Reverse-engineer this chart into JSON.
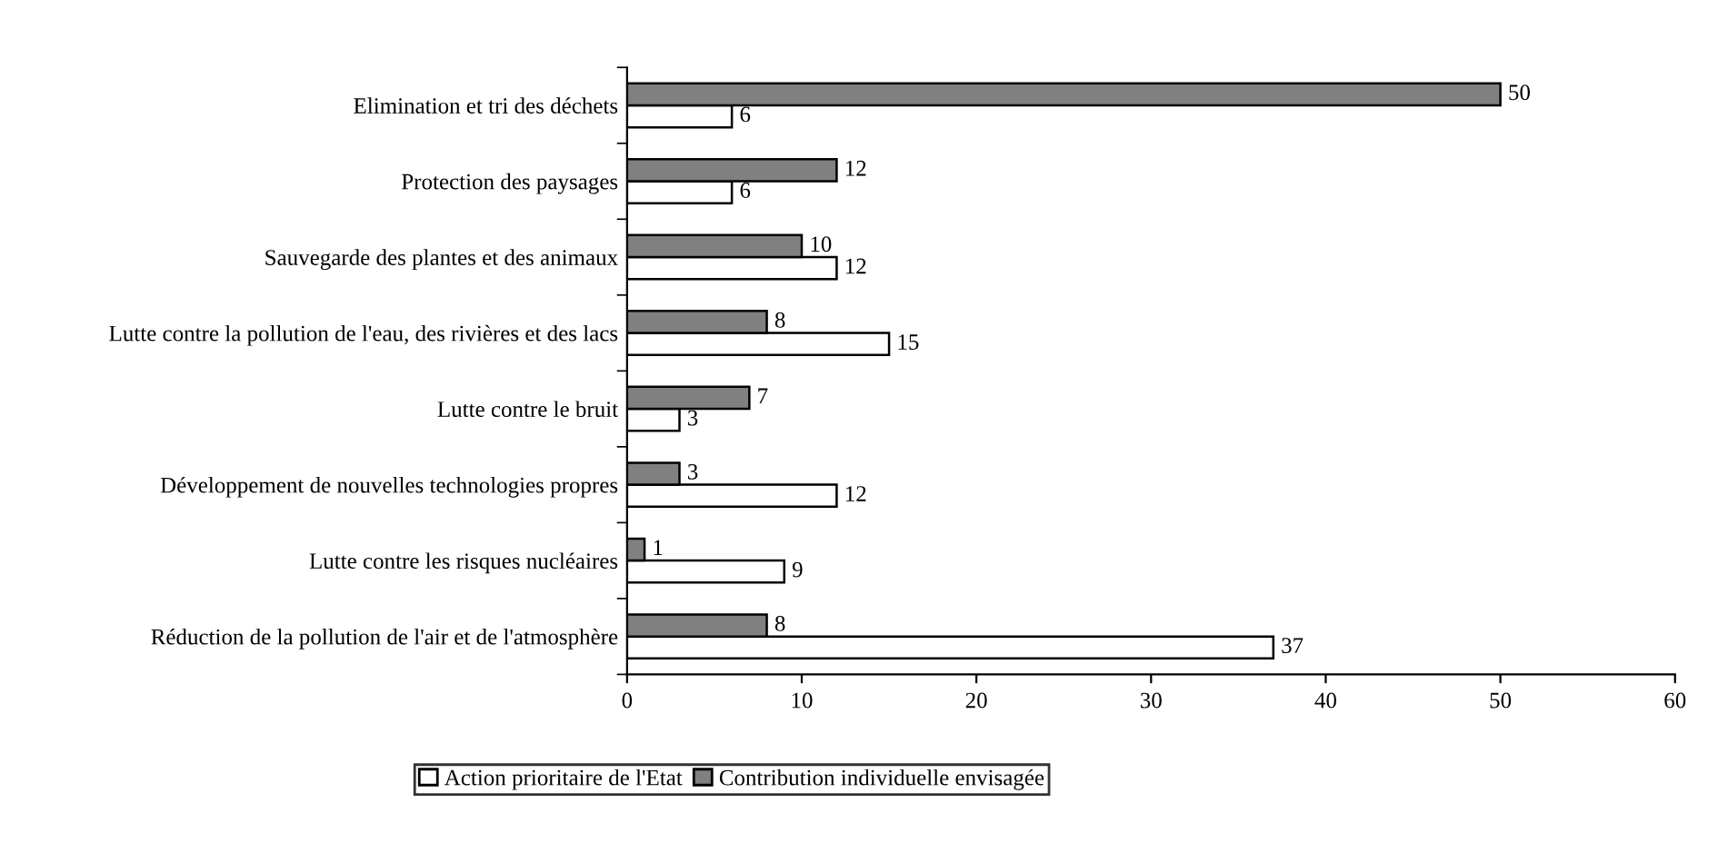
{
  "chart_data": {
    "type": "bar",
    "orientation": "horizontal",
    "categories": [
      "Elimination et tri des déchets",
      "Protection des paysages",
      "Sauvegarde des plantes et des animaux",
      "Lutte contre la pollution de l'eau, des rivières et des lacs",
      "Lutte contre le bruit",
      "Développement de nouvelles technologies propres",
      "Lutte contre les risques nucléaires",
      "Réduction de la pollution de l'air et de l'atmosphère"
    ],
    "series": [
      {
        "name": "Action prioritaire de l'Etat",
        "color": "#ffffff",
        "values": [
          6,
          6,
          12,
          15,
          3,
          12,
          9,
          37
        ]
      },
      {
        "name": "Contribution individuelle envisagée",
        "color": "#808080",
        "values": [
          50,
          12,
          10,
          8,
          7,
          3,
          1,
          8
        ]
      }
    ],
    "xlim": [
      0,
      60
    ],
    "xticks": [
      0,
      10,
      20,
      30,
      40,
      50,
      60
    ],
    "data_labels": true,
    "grid": false,
    "legend": "bottom"
  }
}
